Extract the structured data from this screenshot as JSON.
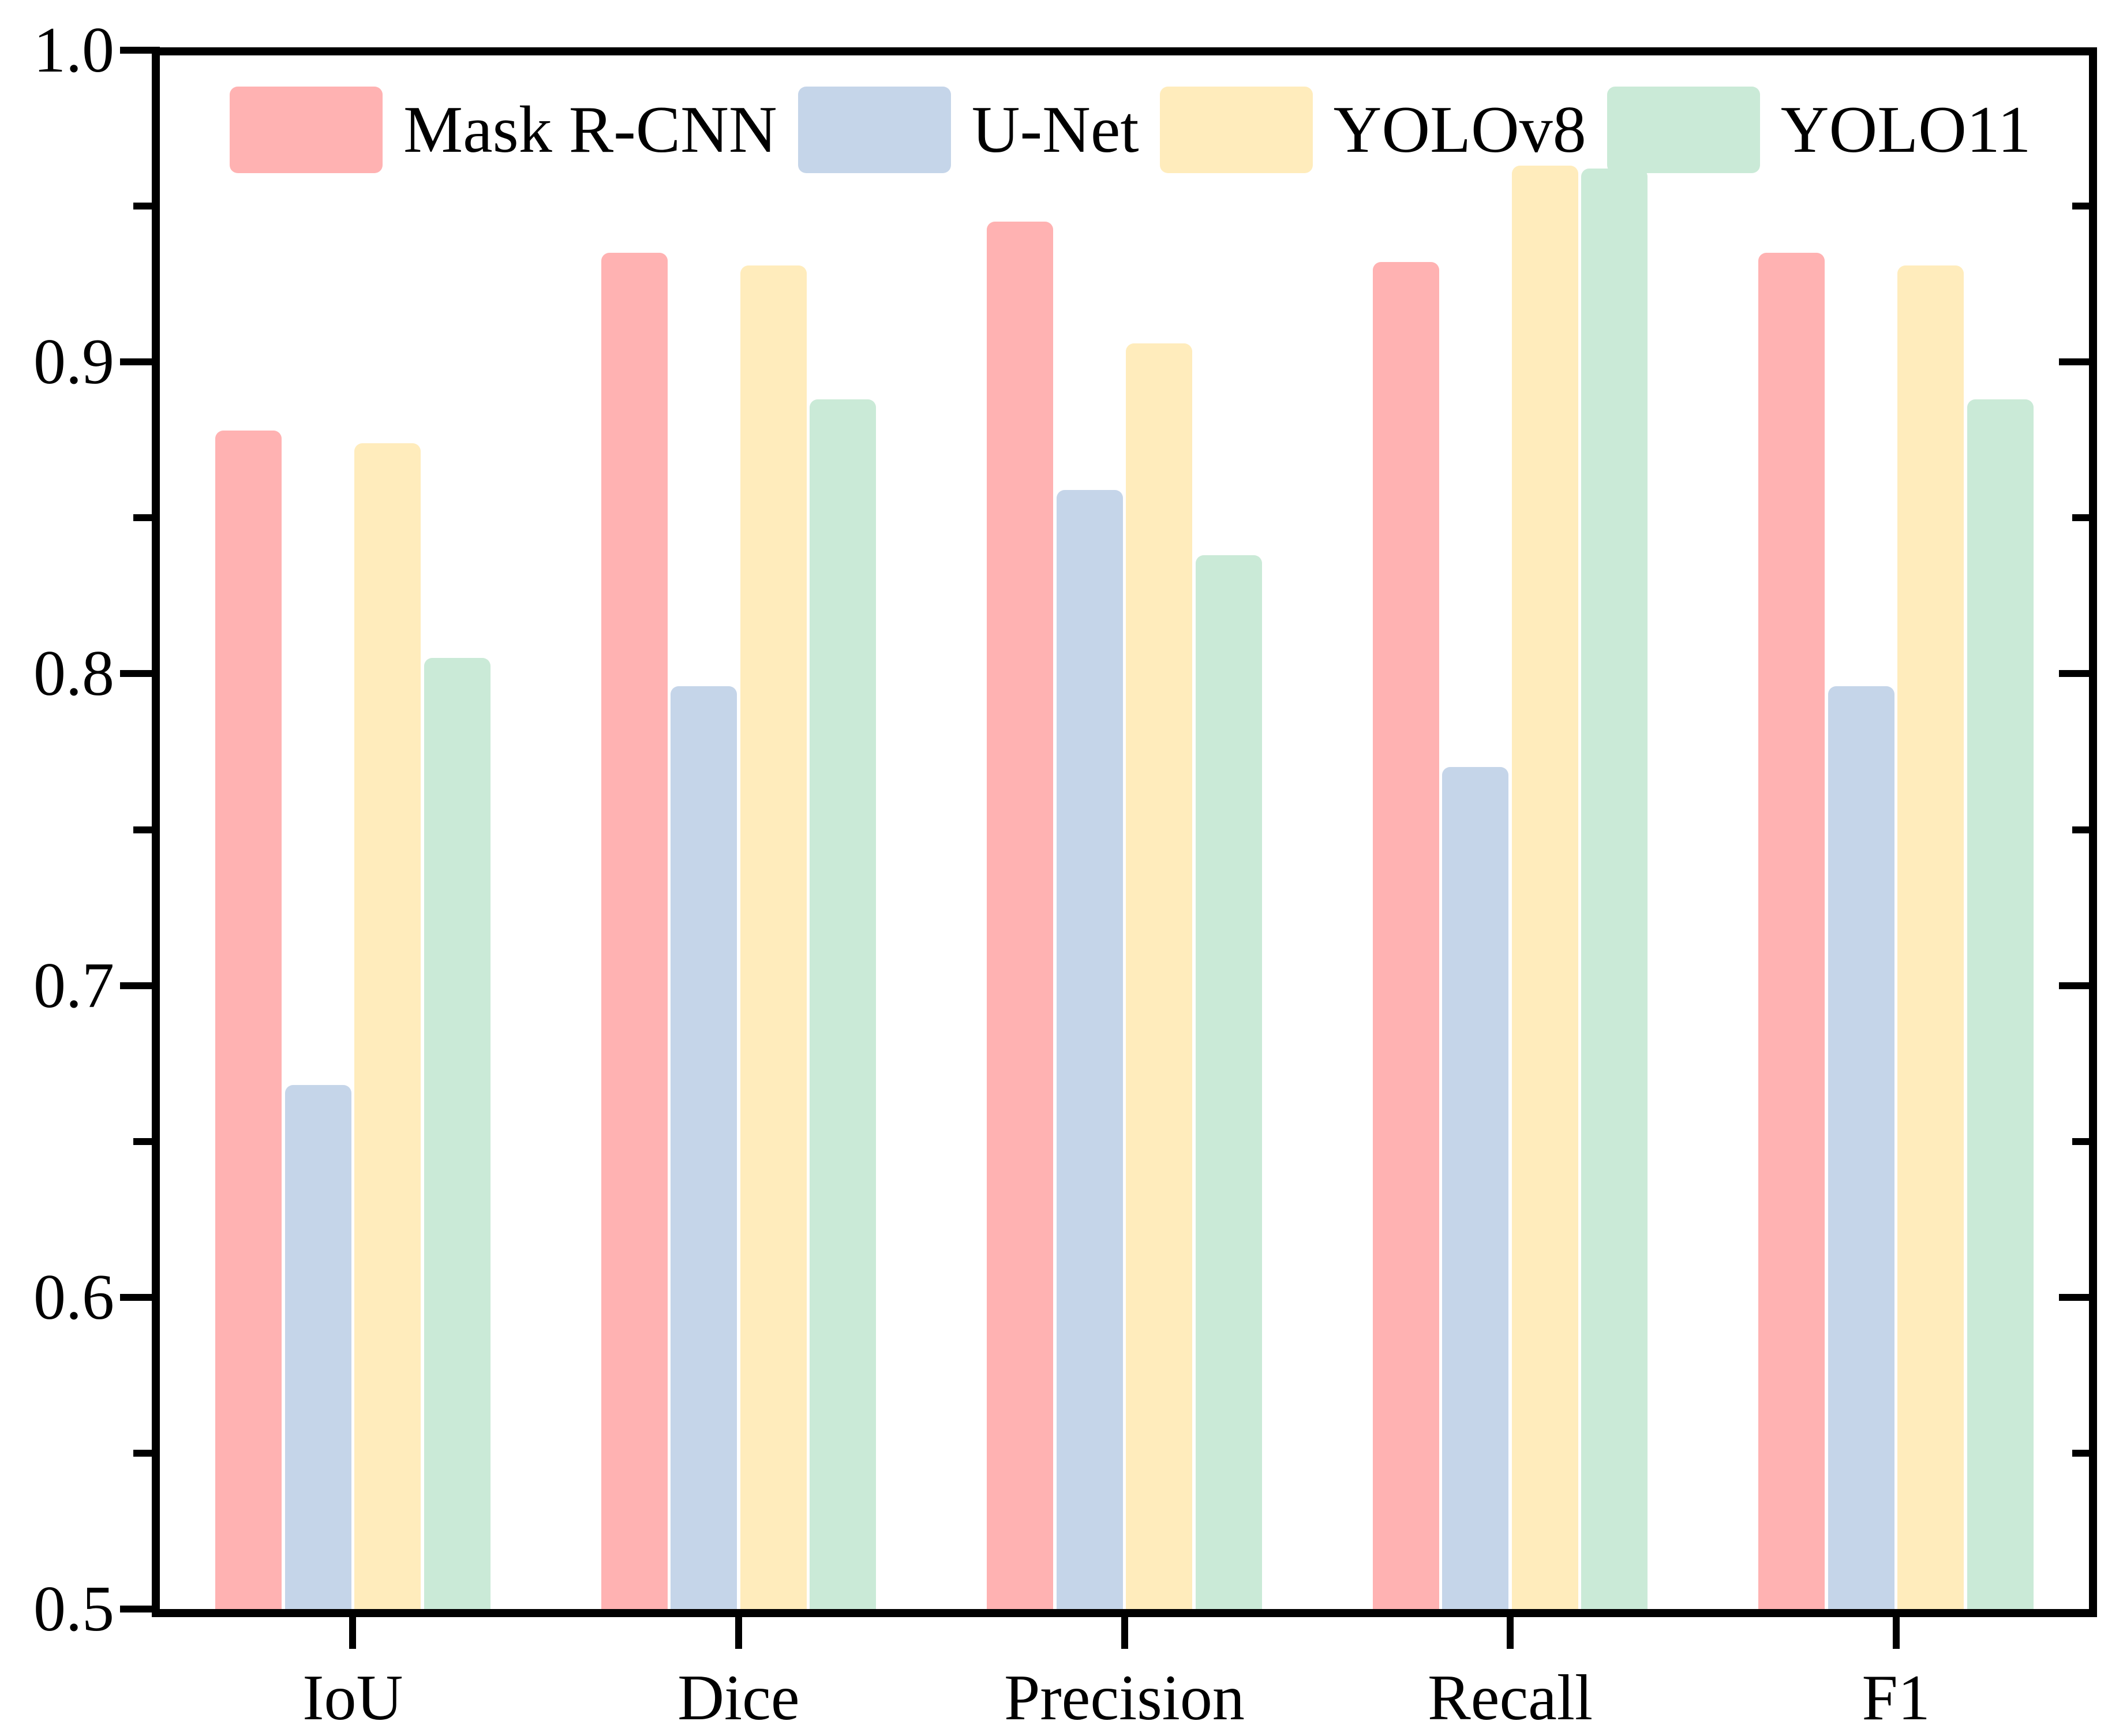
{
  "chart_data": {
    "type": "bar",
    "title": "",
    "xlabel": "",
    "ylabel": "",
    "categories": [
      "IoU",
      "Dice",
      "Precision",
      "Recall",
      "F1"
    ],
    "series": [
      {
        "name": "Mask R-CNN",
        "color": "#FFB2B2",
        "values": [
          0.878,
          0.935,
          0.945,
          0.932,
          0.935
        ]
      },
      {
        "name": "U-Net",
        "color": "#C5D5E9",
        "values": [
          0.668,
          0.796,
          0.859,
          0.77,
          0.796
        ]
      },
      {
        "name": "YOLOv8",
        "color": "#FFECBC",
        "values": [
          0.874,
          0.931,
          0.906,
          0.963,
          0.931
        ]
      },
      {
        "name": "YOLO11",
        "color": "#CAEAD7",
        "values": [
          0.805,
          0.888,
          0.838,
          0.962,
          0.888
        ]
      }
    ],
    "ylim": [
      0.5,
      1.0
    ],
    "yticks": [
      0.5,
      0.6,
      0.7,
      0.8,
      0.9,
      1.0
    ],
    "ytick_labels": [
      "0.5",
      "0.6",
      "0.7",
      "0.8",
      "0.9",
      "1.0"
    ],
    "minor_tick_step": 0.05,
    "grid": false,
    "legend_position": "top-inside",
    "axis_color": "#000000",
    "background_color": "#ffffff"
  }
}
